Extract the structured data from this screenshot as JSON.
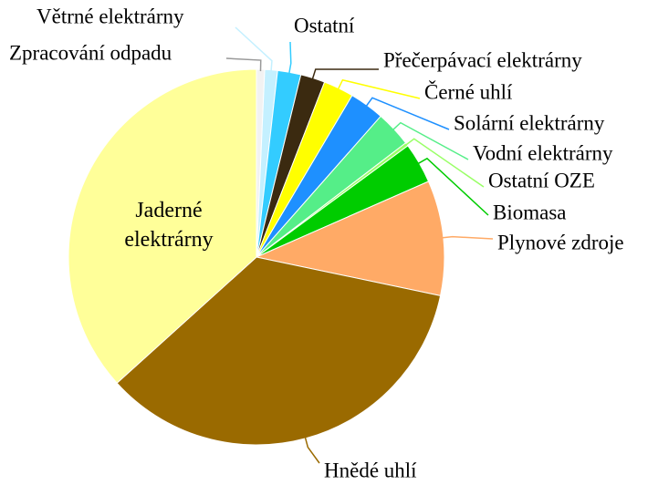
{
  "chart_data": {
    "type": "pie",
    "categories": [
      "Zpracování odpadu",
      "Větrné elektrárny",
      "Ostatní",
      "Přečerpávací elektrárny",
      "Černé uhlí",
      "Solární elektrárny",
      "Vodní elektrárny",
      "Ostatní OZE",
      "Biomasa",
      "Plynové zdroje",
      "Hnědé uhlí",
      "Jaderné elektrárny"
    ],
    "values": [
      0.7,
      1.1,
      2.0,
      2.1,
      2.6,
      3.0,
      3.1,
      0.3,
      3.5,
      9.9,
      35.0,
      36.7
    ],
    "colors": [
      "#f2f2f2",
      "#c4f0ff",
      "#33ccff",
      "#3b2a10",
      "#ffff00",
      "#1e90ff",
      "#55ee88",
      "#99ff66",
      "#00cc00",
      "#ffaa66",
      "#9a6a00",
      "#ffff99"
    ]
  }
}
